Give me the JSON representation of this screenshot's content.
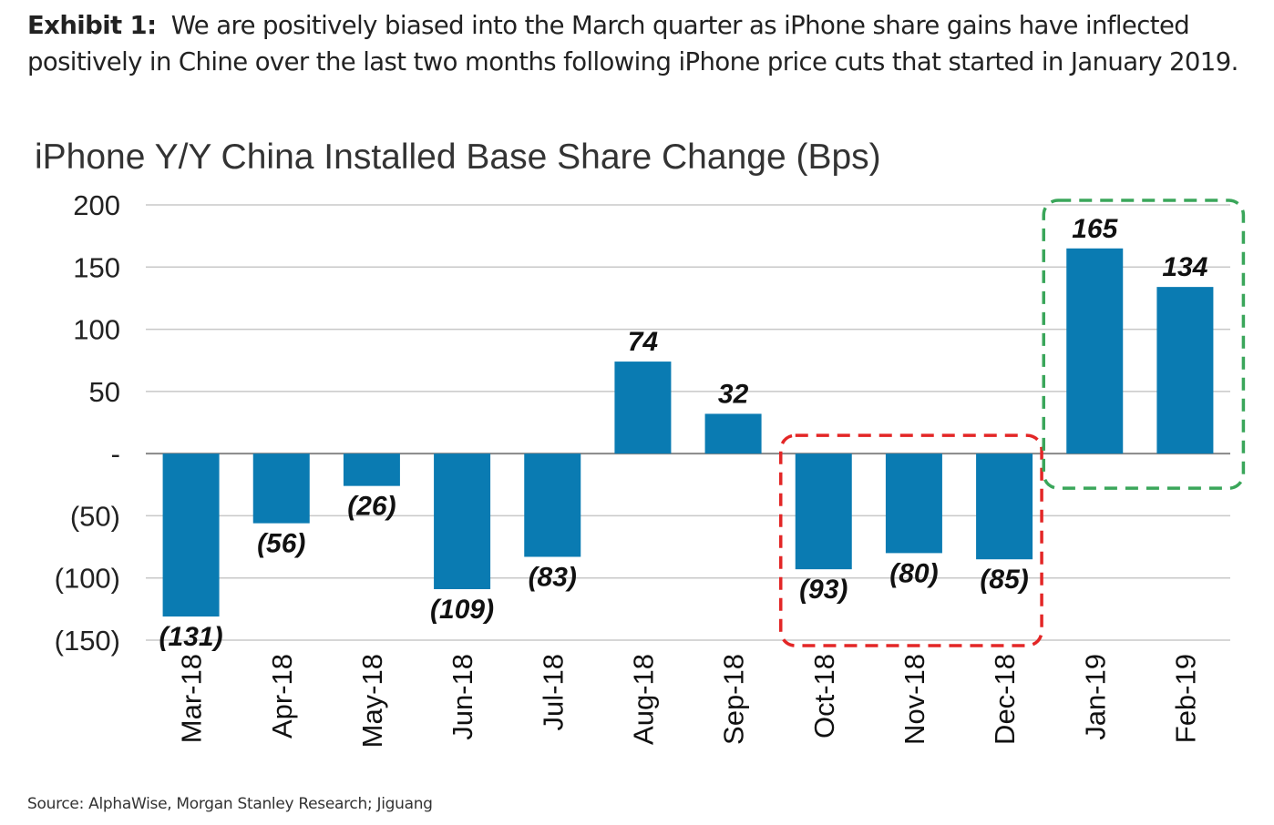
{
  "exhibit": {
    "label": "Exhibit 1:",
    "text": "We are positively biased into the March quarter as iPhone share gains have inflected positively in Chine over the last two months following iPhone price cuts that started in January 2019."
  },
  "source": "Source: AlphaWise, Morgan Stanley Research; Jiguang",
  "colors": {
    "bar": "#0a7bb2",
    "grid": "#c8c8c8",
    "axis": "#888888",
    "highlight_negative": "#e32626",
    "highlight_positive": "#3aa65a"
  },
  "chart_data": {
    "type": "bar",
    "title": "iPhone Y/Y China Installed Base Share Change (Bps)",
    "xlabel": "",
    "ylabel": "",
    "categories": [
      "Mar-18",
      "Apr-18",
      "May-18",
      "Jun-18",
      "Jul-18",
      "Aug-18",
      "Sep-18",
      "Oct-18",
      "Nov-18",
      "Dec-18",
      "Jan-19",
      "Feb-19"
    ],
    "values": [
      -131,
      -56,
      -26,
      -109,
      -83,
      74,
      32,
      -93,
      -80,
      -85,
      165,
      134
    ],
    "data_labels": [
      "(131)",
      "(56)",
      "(26)",
      "(109)",
      "(83)",
      "74",
      "32",
      "(93)",
      "(80)",
      "(85)",
      "165",
      "134"
    ],
    "ylim": [
      -150,
      200
    ],
    "yticks": [
      200,
      150,
      100,
      50,
      0,
      -50,
      -100,
      -150
    ],
    "ytick_labels": [
      "200",
      "150",
      "100",
      "50",
      "-",
      "(50)",
      "(100)",
      "(150)"
    ],
    "grid": true,
    "legend": "none",
    "highlights": [
      {
        "from": "Oct-18",
        "to": "Dec-18",
        "color": "red",
        "style": "dashed"
      },
      {
        "from": "Jan-19",
        "to": "Feb-19",
        "color": "green",
        "style": "dashed"
      }
    ]
  }
}
